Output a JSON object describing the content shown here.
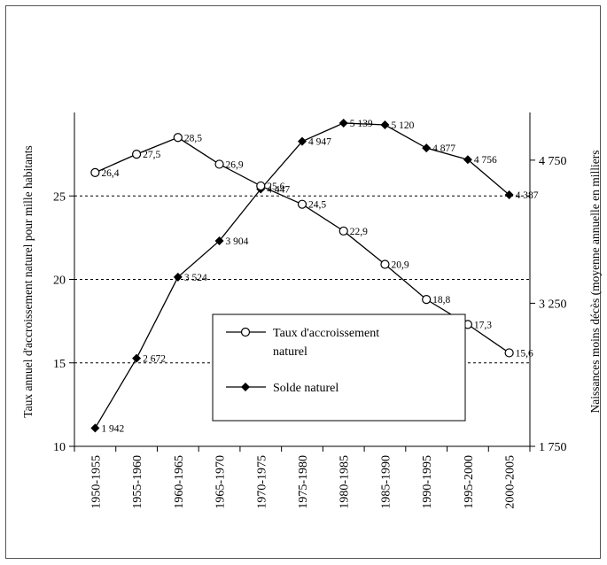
{
  "chart_data": {
    "type": "line",
    "categories": [
      "1950-1955",
      "1955-1960",
      "1960-1965",
      "1965-1970",
      "1970-1975",
      "1975-1980",
      "1980-1985",
      "1985-1990",
      "1990-1995",
      "1995-2000",
      "2000-2005"
    ],
    "series": [
      {
        "name": "Taux d'accroissement naturel",
        "axis": "left",
        "marker": "circle-open",
        "values": [
          26.4,
          27.5,
          28.5,
          26.9,
          25.6,
          24.5,
          22.9,
          20.9,
          18.8,
          17.3,
          15.6
        ],
        "labels": [
          "26,4",
          "27,5",
          "28,5",
          "26,9",
          "25,6",
          "24,5",
          "22,9",
          "20,9",
          "18,8",
          "17,3",
          "15,6"
        ]
      },
      {
        "name": "Solde naturel",
        "axis": "right",
        "marker": "diamond-filled",
        "values": [
          1942,
          2672,
          3524,
          3904,
          4447,
          4947,
          5139,
          5120,
          4877,
          4756,
          4387
        ],
        "labels": [
          "1 942",
          "2 672",
          "3 524",
          "3 904",
          "4 447",
          "4 947",
          "5 139",
          "5 120",
          "4 877",
          "4 756",
          "4 387"
        ]
      }
    ],
    "ylabel": "Taux annuel d'accroissement naturel pour mille habitants",
    "ylabel_right": "Naissances moins décès (moyenne annuelle en milliers",
    "ylim": [
      10,
      30
    ],
    "yticks": [
      10,
      15,
      20,
      25
    ],
    "ylim_right": [
      1750,
      5250
    ],
    "yticks_right": [
      1750,
      3250,
      4750
    ],
    "ytick_labels_right": [
      "1 750",
      "3 250",
      "4 750"
    ],
    "grid": "horizontal dashed",
    "legend_placement": "center-right"
  }
}
